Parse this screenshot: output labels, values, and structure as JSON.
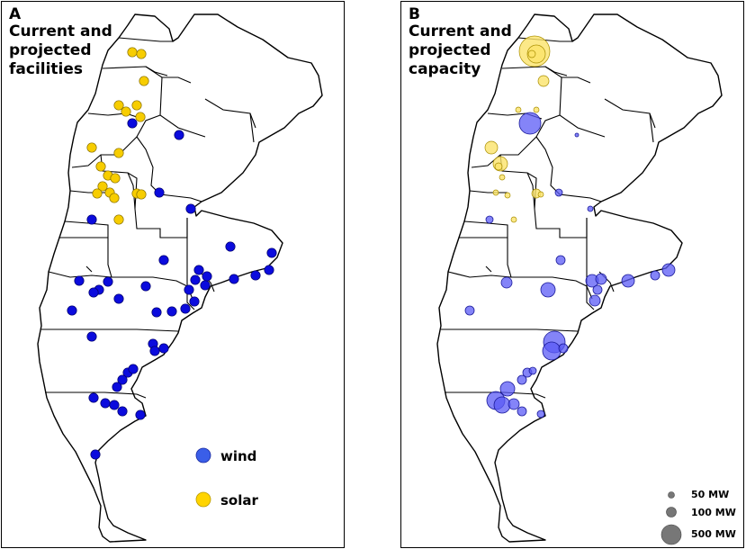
{
  "panel_a": {
    "letter": "A",
    "title": "Current and projected facilities",
    "legend": [
      {
        "label": "wind",
        "color": "#1a1aee"
      },
      {
        "label": "solar",
        "color": "#ffd400"
      }
    ]
  },
  "panel_b": {
    "letter": "B",
    "title": "Current and projected capacity",
    "size_legend": [
      "50 MW",
      "100 MW",
      "500 MW"
    ]
  },
  "colors": {
    "wind": "#0b0bdd",
    "solar": "#f7cd00",
    "wind_b": "#5b5bf5",
    "solar_b": "#fbe36a"
  }
}
